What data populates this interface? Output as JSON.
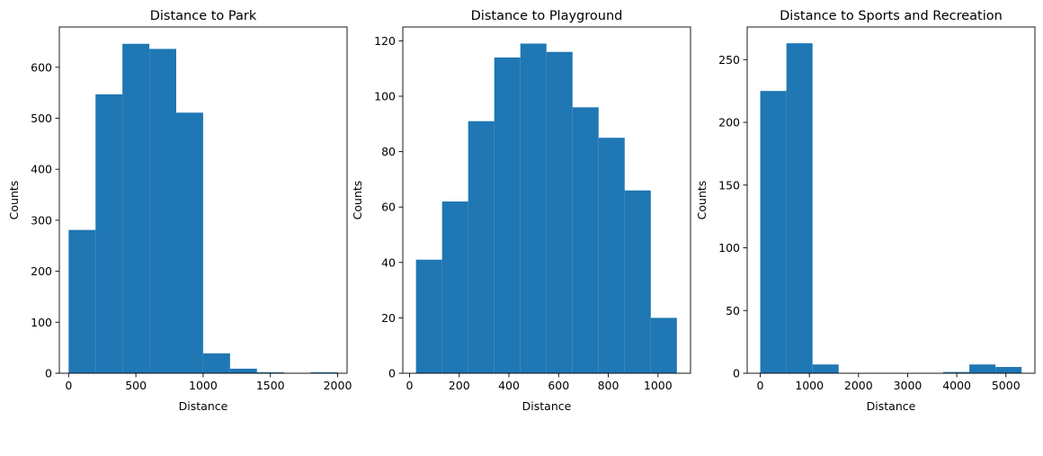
{
  "chart_data": [
    {
      "type": "bar",
      "title": "Distance to Park",
      "xlabel": "Distance",
      "ylabel": "Counts",
      "xlim": [
        -69,
        2070
      ],
      "ylim": [
        0,
        679
      ],
      "xticks": [
        0,
        500,
        1000,
        1500,
        2000
      ],
      "yticks": [
        0,
        100,
        200,
        300,
        400,
        500,
        600
      ],
      "bin_edges": [
        0,
        200,
        400,
        600,
        800,
        1000,
        1200,
        1400,
        1600,
        1800,
        2000
      ],
      "values": [
        281,
        547,
        646,
        636,
        511,
        39,
        9,
        2,
        0,
        2
      ],
      "color": "#1f77b4"
    },
    {
      "type": "bar",
      "title": "Distance to Playground",
      "xlabel": "Distance",
      "ylabel": "Counts",
      "xlim": [
        -27,
        1131
      ],
      "ylim": [
        0,
        125
      ],
      "xticks": [
        0,
        200,
        400,
        600,
        800,
        1000
      ],
      "yticks": [
        0,
        20,
        40,
        60,
        80,
        100,
        120
      ],
      "bin_edges": [
        26,
        131,
        236,
        341,
        446,
        551,
        656,
        761,
        866,
        971,
        1076
      ],
      "values": [
        41,
        62,
        91,
        114,
        119,
        116,
        96,
        85,
        66,
        20
      ],
      "color": "#1f77b4"
    },
    {
      "type": "bar",
      "title": "Distance to Sports and Recreation",
      "xlabel": "Distance",
      "ylabel": "Counts",
      "xlim": [
        -266,
        5590
      ],
      "ylim": [
        0,
        276
      ],
      "xticks": [
        0,
        1000,
        2000,
        3000,
        4000,
        5000
      ],
      "yticks": [
        0,
        50,
        100,
        150,
        200,
        250
      ],
      "bin_edges": [
        0,
        532,
        1064,
        1596,
        2128,
        2660,
        3192,
        3724,
        4256,
        4788,
        5320
      ],
      "values": [
        225,
        263,
        7,
        0,
        0,
        0,
        0,
        1,
        7,
        5
      ],
      "color": "#1f77b4"
    }
  ]
}
